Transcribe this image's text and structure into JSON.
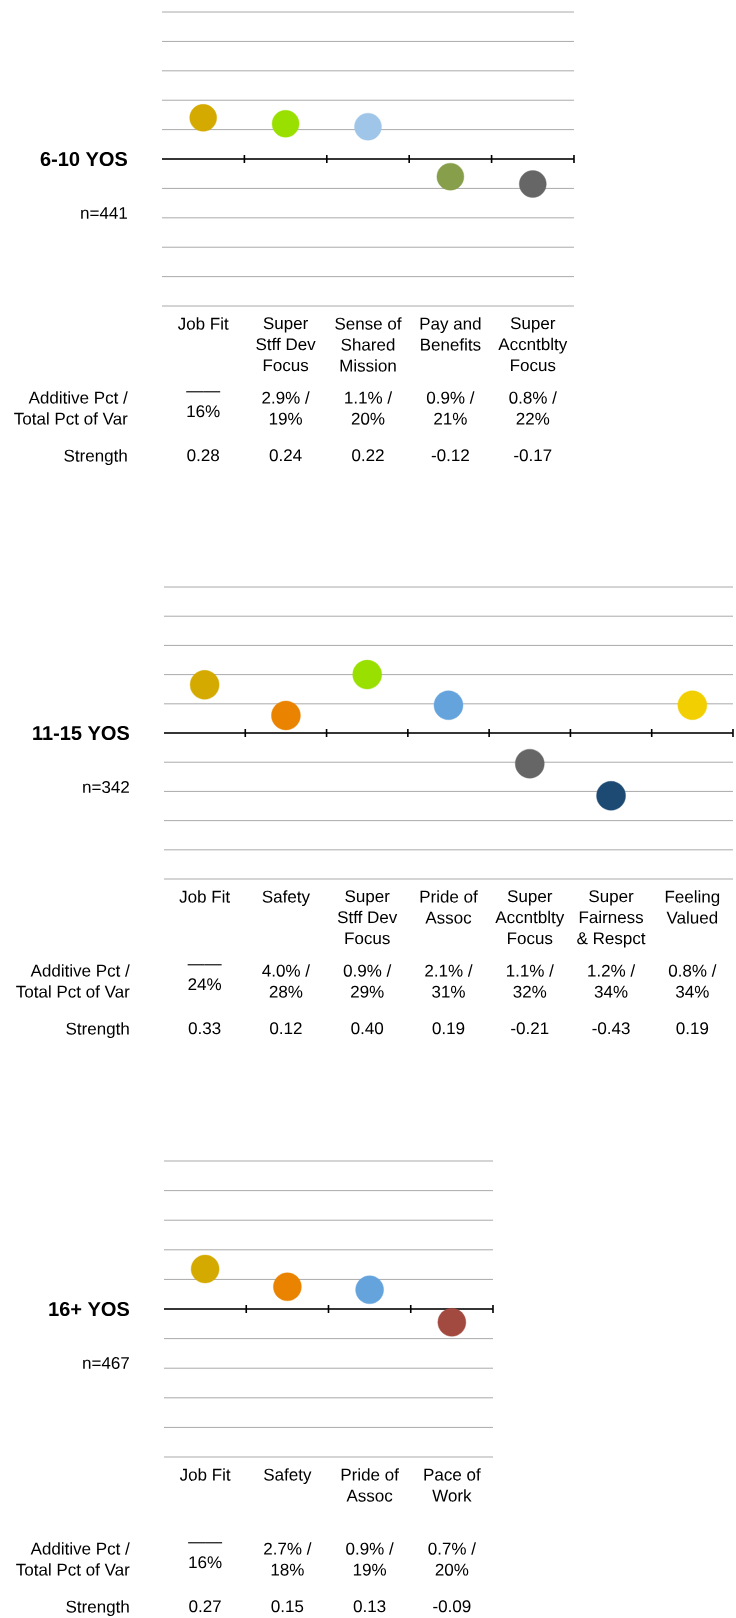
{
  "chart_data": [
    {
      "type": "scatter",
      "title": "6-10 YOS",
      "subtitle": "n=441",
      "categories": [
        "Job Fit",
        "Super Stff Dev Focus",
        "Sense of Shared Mission",
        "Pay and Benefits",
        "Super Accntblty Focus"
      ],
      "values": [
        0.28,
        0.24,
        0.22,
        -0.12,
        -0.17
      ],
      "colors": [
        "#d4aa00",
        "#99e000",
        "#9fc5e8",
        "#879e4a",
        "#666666"
      ],
      "data_labels": true,
      "marker": "circle",
      "grid": "y",
      "tick_labels": "x",
      "ylim": [
        -1,
        1
      ],
      "yticks": [
        {
          "value": -1,
          "label": null
        },
        {
          "value": -0.8,
          "label": null
        },
        {
          "value": -0.6,
          "label": null
        },
        {
          "value": -0.4,
          "label": null
        },
        {
          "value": -0.2,
          "label": null
        },
        {
          "value": 0,
          "label": null
        },
        {
          "value": 0.2,
          "label": null
        },
        {
          "value": 0.4,
          "label": null
        },
        {
          "value": 0.6,
          "label": null
        },
        {
          "value": 0.8,
          "label": null
        },
        {
          "value": 1,
          "label": null
        }
      ],
      "annotations": [
        "Additive Pct / Total Pct of Var",
        "Strength",
        "—— 16%",
        "2.9% / 19%",
        "1.1% / 20%",
        "0.9% / 21%",
        "0.8% / 22%"
      ]
    },
    {
      "type": "scatter",
      "title": "11-15 YOS",
      "subtitle": "n=342",
      "categories": [
        "Job Fit",
        "Safety",
        "Super Stff Dev Focus",
        "Pride of Assoc",
        "Super Accntblty Focus",
        "Super Fairness & Respct",
        "Feeling Valued"
      ],
      "values": [
        0.33,
        0.12,
        0.4,
        0.19,
        -0.21,
        -0.43,
        0.19
      ],
      "colors": [
        "#d4aa00",
        "#e98300",
        "#99e000",
        "#65a3dd",
        "#666666",
        "#1d4a73",
        "#f2cf00"
      ],
      "value_labels": [
        "0.33",
        "0.12",
        "0.40",
        "0.19",
        "-0.21",
        "-0.43",
        "0.19"
      ],
      "marker": "circle",
      "grid": "y",
      "tick_labels": "x",
      "ylim": [
        -1,
        1
      ],
      "yticks": [
        {
          "value": -1,
          "label": null
        },
        {
          "value": -0.8,
          "label": null
        },
        {
          "value": -0.6,
          "label": null
        },
        {
          "value": -0.4,
          "label": null
        },
        {
          "value": -0.2,
          "label": null
        },
        {
          "value": 0,
          "label": null
        },
        {
          "value": 0.2,
          "label": null
        },
        {
          "value": 0.4,
          "label": null
        },
        {
          "value": 0.6,
          "label": null
        },
        {
          "value": 0.8,
          "label": null
        },
        {
          "value": 1,
          "label": null
        }
      ],
      "annotations": [
        "Additive Pct / Total Pct of Var",
        "Strength",
        "—— 24%",
        "4.0% / 28%",
        "0.9% / 29%",
        "2.1% / 31%",
        "1.1% / 32%",
        "1.2% / 34%",
        "0.8% / 34%"
      ]
    },
    {
      "type": "scatter",
      "title": "16+ YOS",
      "subtitle": "n=467",
      "categories": [
        "Job Fit",
        "Safety",
        "Pride of Assoc",
        "Pace of Work"
      ],
      "values": [
        0.27,
        0.15,
        0.13,
        -0.09
      ],
      "colors": [
        "#d4aa00",
        "#e98300",
        "#65a3dd",
        "#a34a40"
      ],
      "data_labels": true,
      "marker": "circle",
      "grid": "y",
      "tick_labels": "x",
      "ylim": [
        -1,
        1
      ],
      "yticks": [
        {
          "value": -1,
          "label": null
        },
        {
          "value": -0.8,
          "label": null
        },
        {
          "value": -0.6,
          "label": null
        },
        {
          "value": -0.4,
          "label": null
        },
        {
          "value": -0.2,
          "label": null
        },
        {
          "value": 0,
          "label": null
        },
        {
          "value": 0.2,
          "label": null
        },
        {
          "value": 0.4,
          "label": null
        },
        {
          "value": 0.6,
          "label": null
        },
        {
          "value": 0.8,
          "label": null
        },
        {
          "value": 1,
          "label": null
        }
      ],
      "annotations": [
        "Additive Pct / Total Pct of Var",
        "Strength",
        "—— 16%",
        "2.7% / 18%",
        "0.9% / 19%",
        "0.7% / 20%"
      ]
    }
  ]
}
